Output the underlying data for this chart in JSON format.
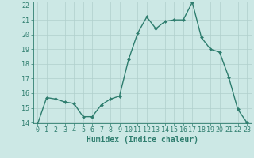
{
  "x": [
    0,
    1,
    2,
    3,
    4,
    5,
    6,
    7,
    8,
    9,
    10,
    11,
    12,
    13,
    14,
    15,
    16,
    17,
    18,
    19,
    20,
    21,
    22,
    23
  ],
  "y": [
    13.9,
    15.7,
    15.6,
    15.4,
    15.3,
    14.4,
    14.4,
    15.2,
    15.6,
    15.8,
    18.3,
    20.1,
    21.2,
    20.4,
    20.9,
    21.0,
    21.0,
    22.2,
    19.8,
    19.0,
    18.8,
    17.1,
    14.9,
    14.0
  ],
  "xlabel": "Humidex (Indice chaleur)",
  "ylim": [
    14,
    22
  ],
  "xlim": [
    -0.5,
    23.5
  ],
  "yticks": [
    14,
    15,
    16,
    17,
    18,
    19,
    20,
    21,
    22
  ],
  "xticks": [
    0,
    1,
    2,
    3,
    4,
    5,
    6,
    7,
    8,
    9,
    10,
    11,
    12,
    13,
    14,
    15,
    16,
    17,
    18,
    19,
    20,
    21,
    22,
    23
  ],
  "line_color": "#2e7d6e",
  "marker_color": "#2e7d6e",
  "bg_color": "#cce8e5",
  "grid_color": "#b0cfcc",
  "axis_color": "#2e7d6e",
  "tick_label_color": "#2e7d6e",
  "xlabel_color": "#2e7d6e",
  "xlabel_fontsize": 7,
  "tick_fontsize": 6,
  "linewidth": 1.0,
  "markersize": 2.0
}
